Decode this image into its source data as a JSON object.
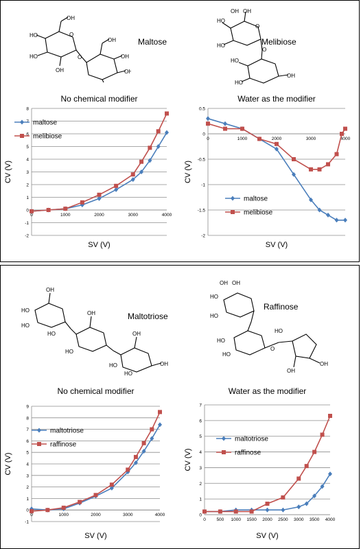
{
  "molecules": {
    "maltose": "Maltose",
    "melibiose": "Melibiose",
    "maltotriose": "Maltotriose",
    "raffinose": "Raffinose"
  },
  "colors": {
    "series_blue": "#4a7ebb",
    "series_red": "#c0504d",
    "grid": "#8c8c8c"
  },
  "chart_data": [
    {
      "type": "line",
      "title": "No chemical modifier",
      "xlabel": "SV (V)",
      "ylabel": "CV (V)",
      "xlim": [
        0,
        4000
      ],
      "ylim": [
        -2,
        8
      ],
      "xticks": [
        0,
        1000,
        2000,
        3000,
        4000
      ],
      "yticks": [
        -2,
        -1,
        0,
        1,
        2,
        3,
        4,
        5,
        6,
        7,
        8
      ],
      "grid": true,
      "legend": "upper-left",
      "series": [
        {
          "name": "maltose",
          "color": "#4a7ebb",
          "marker": "diamond",
          "x": [
            0,
            500,
            1000,
            1500,
            2000,
            2500,
            3000,
            3250,
            3500,
            3750,
            4000
          ],
          "y": [
            -0.1,
            0.0,
            0.1,
            0.4,
            0.9,
            1.6,
            2.4,
            3.0,
            3.9,
            5.0,
            6.1
          ]
        },
        {
          "name": "melibiose",
          "color": "#c0504d",
          "marker": "square",
          "x": [
            0,
            500,
            1000,
            1500,
            2000,
            2500,
            3000,
            3250,
            3500,
            3750,
            4000
          ],
          "y": [
            -0.1,
            0.0,
            0.1,
            0.6,
            1.2,
            1.9,
            2.8,
            3.8,
            4.9,
            6.2,
            7.6
          ]
        }
      ]
    },
    {
      "type": "line",
      "title": "Water as the modifier",
      "xlabel": "SV (V)",
      "ylabel": "CV (V)",
      "xlim": [
        0,
        4000
      ],
      "ylim": [
        -2,
        0.5
      ],
      "xticks": [
        0,
        1000,
        2000,
        3000,
        4000
      ],
      "yticks": [
        -2,
        -1.5,
        -1,
        -0.5,
        0,
        0.5
      ],
      "ytick_labels": [
        "-2",
        "-1.5",
        "-1",
        "-0.5",
        "0",
        "0.5"
      ],
      "grid": true,
      "legend": "lower-left",
      "series": [
        {
          "name": "maltose",
          "color": "#4a7ebb",
          "marker": "diamond",
          "x": [
            0,
            500,
            1000,
            1500,
            2000,
            2500,
            3000,
            3250,
            3500,
            3750,
            4000
          ],
          "y": [
            0.3,
            0.2,
            0.1,
            -0.1,
            -0.3,
            -0.8,
            -1.3,
            -1.5,
            -1.6,
            -1.7,
            -1.7
          ]
        },
        {
          "name": "melibiose",
          "color": "#c0504d",
          "marker": "square",
          "x": [
            0,
            500,
            1000,
            1500,
            2000,
            2500,
            3000,
            3250,
            3500,
            3750,
            3900,
            4000
          ],
          "y": [
            0.2,
            0.1,
            0.1,
            -0.1,
            -0.2,
            -0.5,
            -0.7,
            -0.7,
            -0.6,
            -0.4,
            0.0,
            0.1
          ]
        }
      ]
    },
    {
      "type": "line",
      "title": "No chemical modifier",
      "xlabel": "SV (V)",
      "ylabel": "CV (V)",
      "xlim": [
        0,
        4000
      ],
      "ylim": [
        -1,
        9
      ],
      "xticks": [
        0,
        1000,
        2000,
        3000,
        4000
      ],
      "yticks": [
        -1,
        0,
        1,
        2,
        3,
        4,
        5,
        6,
        7,
        8,
        9
      ],
      "grid": true,
      "legend": "upper-left",
      "series": [
        {
          "name": "maltotriose",
          "color": "#4a7ebb",
          "marker": "diamond",
          "x": [
            0,
            500,
            1000,
            1500,
            2000,
            2500,
            3000,
            3250,
            3500,
            3750,
            4000
          ],
          "y": [
            0.1,
            0.0,
            0.1,
            0.6,
            1.2,
            1.9,
            3.3,
            4.1,
            5.1,
            6.2,
            7.4
          ]
        },
        {
          "name": "raffinose",
          "color": "#c0504d",
          "marker": "square",
          "x": [
            0,
            500,
            1000,
            1500,
            2000,
            2500,
            3000,
            3250,
            3500,
            3750,
            4000
          ],
          "y": [
            -0.1,
            0.0,
            0.2,
            0.7,
            1.3,
            2.2,
            3.5,
            4.6,
            5.8,
            7.0,
            8.5
          ]
        }
      ]
    },
    {
      "type": "line",
      "title": "Water as the modifier",
      "xlabel": "SV (V)",
      "ylabel": "CV (V)",
      "xlim": [
        0,
        4000
      ],
      "ylim": [
        0,
        7
      ],
      "xticks": [
        0,
        500,
        1000,
        1500,
        2000,
        2500,
        3000,
        3500,
        4000
      ],
      "yticks": [
        0,
        1,
        2,
        3,
        4,
        5,
        6,
        7
      ],
      "grid": true,
      "legend": "upper-left",
      "series": [
        {
          "name": "maltotriose",
          "color": "#4a7ebb",
          "marker": "diamond",
          "x": [
            0,
            500,
            1000,
            1500,
            2000,
            2500,
            3000,
            3250,
            3500,
            3750,
            4000
          ],
          "y": [
            0.2,
            0.2,
            0.3,
            0.3,
            0.3,
            0.3,
            0.5,
            0.7,
            1.2,
            1.8,
            2.6
          ]
        },
        {
          "name": "raffinose",
          "color": "#c0504d",
          "marker": "square",
          "x": [
            0,
            500,
            1000,
            1500,
            2000,
            2500,
            3000,
            3250,
            3500,
            3750,
            4000
          ],
          "y": [
            0.2,
            0.2,
            0.2,
            0.2,
            0.7,
            1.1,
            2.3,
            3.1,
            4.0,
            5.1,
            6.3
          ]
        }
      ]
    }
  ]
}
